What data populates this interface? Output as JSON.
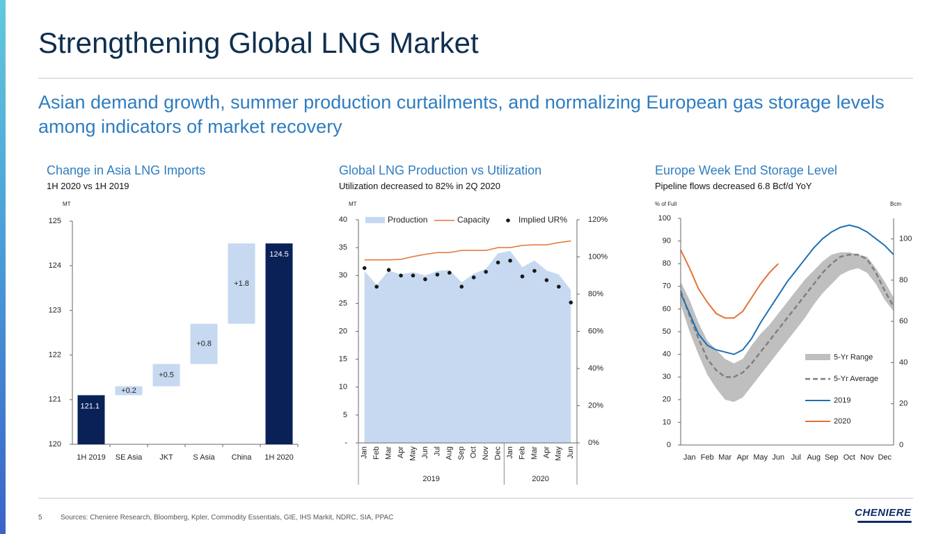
{
  "slide": {
    "title": "Strengthening Global LNG Market",
    "subtitle": "Asian demand growth, summer production curtailments, and normalizing European gas storage levels among indicators of market recovery",
    "page_number": "5",
    "sources": "Sources: Cheniere Research, Bloomberg, Kpler, Commodity Essentials, GIE, IHS Markit, NDRC, SIA, PPAC",
    "logo_text": "CHENIERE"
  },
  "colors": {
    "navy": "#0a2158",
    "waterfall_light": "#c6d9f1",
    "production_fill": "#c6d9f1",
    "capacity_line": "#e57235",
    "range_fill": "#bfbfbf",
    "avg_line": "#7f7f7f",
    "line_2019": "#1f6fb5",
    "line_2020": "#e57235"
  },
  "chart_data": [
    {
      "type": "bar",
      "title": "Change in Asia LNG Imports",
      "subtitle": "1H 2020 vs 1H 2019",
      "ylabel": "MT",
      "ylim": [
        120,
        125
      ],
      "yticks": [
        "120",
        "121",
        "122",
        "123",
        "124",
        "125"
      ],
      "categories": [
        "1H 2019",
        "SE Asia",
        "JKT",
        "S Asia",
        "China",
        "1H 2020"
      ],
      "bars": [
        {
          "kind": "total",
          "base": 120,
          "top": 121.1,
          "label": "121.1"
        },
        {
          "kind": "delta",
          "base": 121.1,
          "top": 121.3,
          "label": "+0.2"
        },
        {
          "kind": "delta",
          "base": 121.3,
          "top": 121.8,
          "label": "+0.5"
        },
        {
          "kind": "delta",
          "base": 121.8,
          "top": 122.7,
          "label": "+0.8"
        },
        {
          "kind": "delta",
          "base": 122.7,
          "top": 124.5,
          "label": "+1.8"
        },
        {
          "kind": "total",
          "base": 120,
          "top": 124.5,
          "label": "124.5"
        }
      ]
    },
    {
      "type": "area",
      "title": "Global LNG Production vs Utilization",
      "subtitle": "Utilization decreased to 82% in 2Q 2020",
      "ylabel": "MT",
      "ylim": [
        0,
        40
      ],
      "yticks": [
        "-",
        "5",
        "10",
        "15",
        "20",
        "25",
        "30",
        "35",
        "40"
      ],
      "y2lim": [
        0,
        120
      ],
      "y2ticks": [
        "0%",
        "20%",
        "40%",
        "60%",
        "80%",
        "100%",
        "120%"
      ],
      "months": [
        "Jan",
        "Feb",
        "Mar",
        "Apr",
        "May",
        "Jun",
        "Jul",
        "Aug",
        "Sep",
        "Oct",
        "Nov",
        "Dec",
        "Jan",
        "Feb",
        "Mar",
        "Apr",
        "May",
        "Jun"
      ],
      "year_labels": [
        "2019",
        "2020"
      ],
      "legend": [
        "Production",
        "Capacity",
        "Implied UR%"
      ],
      "series": [
        {
          "name": "Production",
          "values": [
            30.8,
            28.3,
            30.9,
            30.2,
            30.6,
            30.0,
            30.8,
            31.0,
            28.8,
            30.3,
            31.2,
            34.0,
            34.4,
            31.5,
            32.7,
            30.9,
            30.2,
            27.4
          ]
        },
        {
          "name": "Capacity",
          "values": [
            32.8,
            32.8,
            32.8,
            32.9,
            33.4,
            33.8,
            34.1,
            34.1,
            34.5,
            34.5,
            34.5,
            35.0,
            35.0,
            35.4,
            35.5,
            35.5,
            35.9,
            36.2
          ]
        },
        {
          "name": "Implied UR%",
          "values": [
            94,
            84,
            93,
            90,
            90,
            88,
            90.5,
            91.5,
            84,
            89,
            92,
            97,
            98,
            89.5,
            92.5,
            87.5,
            84,
            75.5
          ]
        }
      ]
    },
    {
      "type": "line",
      "title": "Europe Week End Storage Level",
      "subtitle": "Pipeline flows decreased 6.8 Bcf/d YoY",
      "ylabel": "% of Full",
      "y2label": "Bcm",
      "ylim": [
        0,
        100
      ],
      "yticks": [
        "0",
        "10",
        "20",
        "30",
        "40",
        "50",
        "60",
        "70",
        "80",
        "90",
        "100"
      ],
      "y2lim": [
        0,
        110
      ],
      "y2ticks": [
        "0",
        "20",
        "40",
        "60",
        "80",
        "100"
      ],
      "categories": [
        "Jan",
        "Feb",
        "Mar",
        "Apr",
        "May",
        "Jun",
        "Jul",
        "Aug",
        "Sep",
        "Oct",
        "Nov",
        "Dec"
      ],
      "legend": [
        "5-Yr Range",
        "5-Yr Average",
        "2019",
        "2020"
      ],
      "x": [
        0,
        0.5,
        1,
        1.5,
        2,
        2.5,
        3,
        3.5,
        4,
        4.5,
        5,
        5.5,
        6,
        6.5,
        7,
        7.5,
        8,
        8.5,
        9,
        9.5,
        10,
        10.5,
        11,
        11.5,
        12
      ],
      "series": [
        {
          "name": "5-Yr Range high",
          "values": [
            72,
            64,
            54,
            46,
            42,
            38,
            36,
            38,
            44,
            49,
            53,
            58,
            63,
            68,
            73,
            77,
            81,
            84,
            85,
            85,
            84,
            83,
            78,
            72,
            65
          ]
        },
        {
          "name": "5-Yr Range low",
          "values": [
            62,
            50,
            40,
            31,
            25,
            20,
            19,
            21,
            26,
            31,
            36,
            41,
            46,
            51,
            56,
            62,
            67,
            71,
            75,
            77,
            78,
            76,
            71,
            64,
            59
          ]
        },
        {
          "name": "5-Yr Average",
          "values": [
            68,
            57,
            47,
            38,
            33,
            30,
            30,
            32,
            36,
            41,
            46,
            51,
            56,
            61,
            66,
            71,
            76,
            80,
            83,
            84,
            84,
            82,
            76,
            68,
            61
          ]
        },
        {
          "name": "2019",
          "values": [
            67,
            58,
            49,
            44,
            42,
            41,
            40,
            42,
            47,
            54,
            60,
            66,
            72,
            77,
            82,
            87,
            91,
            94,
            96,
            97,
            96,
            94,
            91,
            88,
            84
          ]
        },
        {
          "name": "2020",
          "values": [
            86,
            78,
            69,
            63,
            58,
            56,
            56,
            59,
            65,
            71,
            76,
            80
          ]
        }
      ]
    }
  ]
}
